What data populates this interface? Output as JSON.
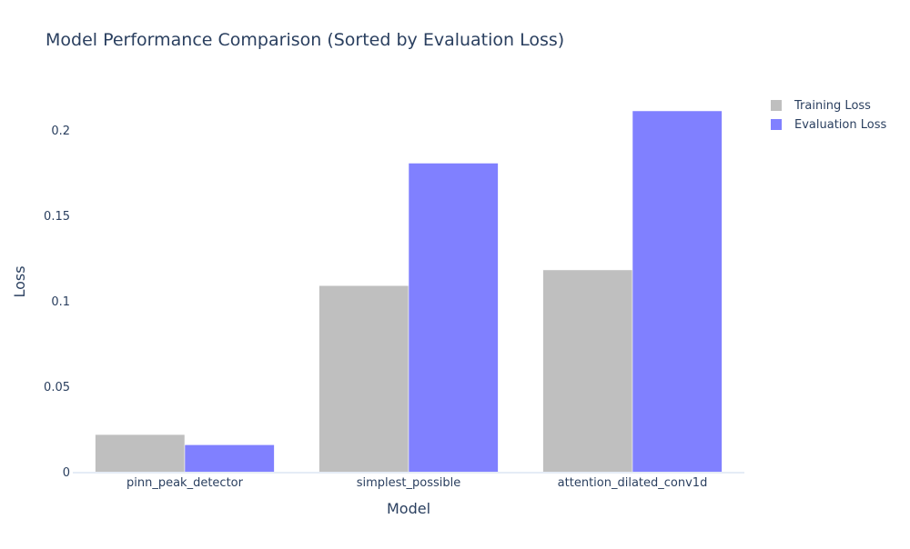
{
  "chart_data": {
    "type": "bar",
    "title": "Model Performance Comparison (Sorted by Evaluation Loss)",
    "xlabel": "Model",
    "ylabel": "Loss",
    "categories": [
      "pinn_peak_detector",
      "simplest_possible",
      "attention_dilated_conv1d"
    ],
    "series": [
      {
        "name": "Training Loss",
        "color": "#bfbfbf",
        "values": [
          0.0223,
          0.1095,
          0.1187
        ]
      },
      {
        "name": "Evaluation Loss",
        "color": "#8080ff",
        "values": [
          0.0163,
          0.1812,
          0.2118
        ]
      }
    ],
    "ylim": [
      0,
      0.2235
    ],
    "yticks": [
      0,
      0.05,
      0.1,
      0.15,
      0.2
    ],
    "ytick_labels": [
      "0",
      "0.05",
      "0.1",
      "0.15",
      "0.2"
    ],
    "grid": false,
    "legend_position": "top-right",
    "text_color": "#2a3f5f",
    "axis_line_color": "#e5ecf6"
  }
}
